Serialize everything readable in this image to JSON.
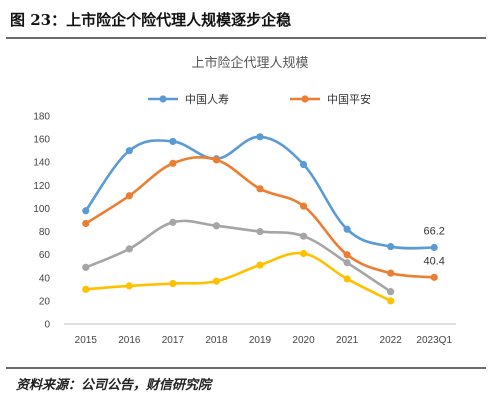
{
  "header": {
    "figure_title": "图 23：上市险企个险代理人规模逐步企稳"
  },
  "footer": {
    "source": "资料来源：公司公告，财信研究院"
  },
  "chart_data": {
    "type": "line",
    "title": "上市险企代理人规模",
    "xlabel": "",
    "ylabel": "",
    "ylim": [
      0,
      180
    ],
    "yticks": [
      0,
      20,
      40,
      60,
      80,
      100,
      120,
      140,
      160,
      180
    ],
    "categories": [
      "2015",
      "2016",
      "2017",
      "2018",
      "2019",
      "2020",
      "2021",
      "2022",
      "2023Q1"
    ],
    "grid": false,
    "legend_position": "top",
    "series": [
      {
        "name": "中国人寿",
        "color": "#5b9bd5",
        "values": [
          98,
          150,
          158,
          143,
          162,
          138,
          82,
          67,
          66.2
        ],
        "legend": true
      },
      {
        "name": "中国平安",
        "color": "#ed7d31",
        "values": [
          87,
          111,
          139,
          142,
          117,
          102,
          60,
          44,
          40.4
        ],
        "legend": true
      },
      {
        "name": "",
        "color": "#a5a5a5",
        "values": [
          49,
          65,
          88,
          85,
          80,
          76,
          53,
          28,
          null
        ],
        "legend": false
      },
      {
        "name": "",
        "color": "#ffc000",
        "values": [
          30,
          33,
          35,
          37,
          51,
          61,
          39,
          20,
          null
        ],
        "legend": false
      }
    ],
    "annotations": [
      {
        "series": 0,
        "category": "2023Q1",
        "text": "66.2"
      },
      {
        "series": 1,
        "category": "2023Q1",
        "text": "40.4"
      }
    ]
  }
}
